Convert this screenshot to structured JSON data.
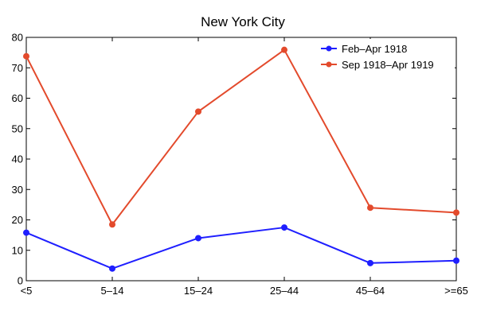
{
  "chart_data": {
    "type": "line",
    "title": "New York City",
    "xlabel": "",
    "ylabel": "",
    "categories": [
      "<5",
      "5–14",
      "15–24",
      "25–44",
      "45–64",
      ">=65"
    ],
    "ylim": [
      0,
      80
    ],
    "yticks": [
      0,
      10,
      20,
      30,
      40,
      50,
      60,
      70,
      80
    ],
    "grid": false,
    "legend_position": "top-right",
    "series": [
      {
        "name": "Feb–Apr 1918",
        "color": "#1f1fff",
        "values": [
          15.8,
          4.0,
          14.0,
          17.5,
          5.8,
          6.6
        ]
      },
      {
        "name": "Sep 1918–Apr 1919",
        "color": "#e34a2c",
        "values": [
          73.8,
          18.5,
          55.6,
          75.9,
          24.0,
          22.4
        ]
      }
    ]
  }
}
